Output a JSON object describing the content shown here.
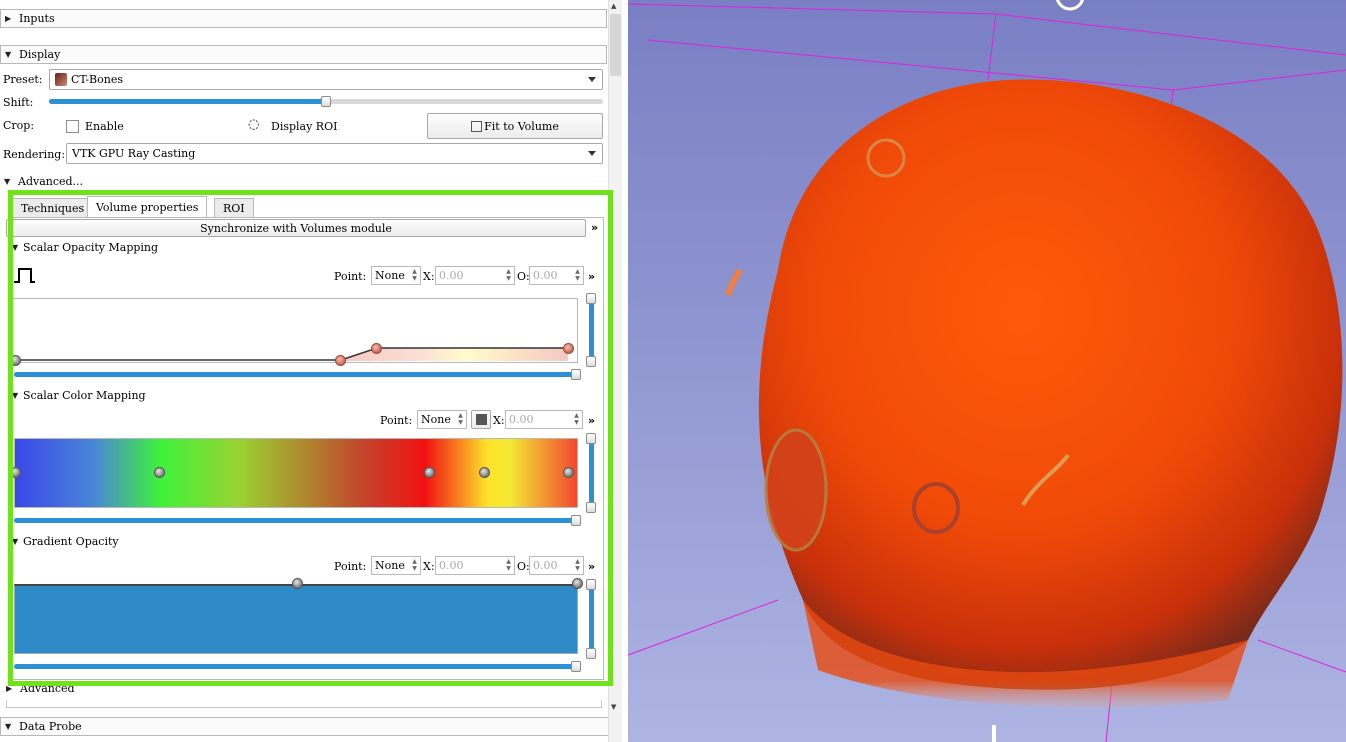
{
  "sections": {
    "inputs": "Inputs",
    "display": "Display",
    "data_probe": "Data Probe",
    "advanced_toggle": "Advanced...",
    "advanced_bottom": "Advanced"
  },
  "display": {
    "preset_label": "Preset:",
    "preset_value": "CT-Bones",
    "shift_label": "Shift:",
    "shift_fraction": 0.5,
    "crop_label": "Crop:",
    "crop_enable": "Enable",
    "display_roi": "Display ROI",
    "fit_to_volume": "Fit to Volume",
    "rendering_label": "Rendering:",
    "rendering_value": "VTK GPU Ray Casting"
  },
  "tabs": [
    "Techniques",
    "Volume properties",
    "ROI"
  ],
  "active_tab": "Volume properties",
  "volume_properties": {
    "sync_button": "Synchronize with Volumes module",
    "scalar_opacity": {
      "title": "Scalar Opacity Mapping",
      "point_label": "Point:",
      "point_value": "None",
      "x_label": "X:",
      "x_value": "0.00",
      "o_label": "O:",
      "o_value": "0.00"
    },
    "scalar_color": {
      "title": "Scalar Color Mapping",
      "point_label": "Point:",
      "point_value": "None",
      "x_label": "X:",
      "x_value": "0.00"
    },
    "gradient_opacity": {
      "title": "Gradient Opacity",
      "point_label": "Point:",
      "point_value": "None",
      "x_label": "X:",
      "x_value": "0.00",
      "o_label": "O:",
      "o_value": "0.00"
    }
  },
  "colors": {
    "highlight": "#6fe21b",
    "slider_fill": "#2d8fd4",
    "gradient_fill": "#2e8bc8",
    "background_top": "#7a7fc4",
    "background_bottom": "#aeb4e2",
    "box_lines": "#e020e0"
  },
  "icons": {
    "more": "double-chevron-right-icon",
    "preset": "skull-thumbnail-icon",
    "roi": "eye-icon",
    "fit": "fit-crosshair-icon",
    "opacity_shape": "step-function-icon"
  }
}
